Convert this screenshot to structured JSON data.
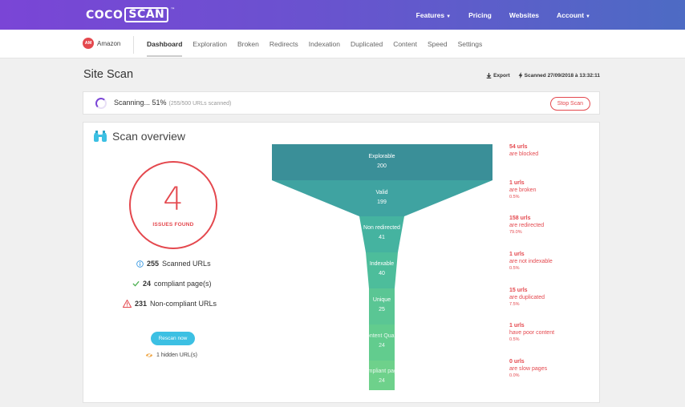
{
  "brand": {
    "logo_left": "COCO",
    "logo_right": "SCAN",
    "logo_mark": "™"
  },
  "topnav": {
    "features": "Features",
    "pricing": "Pricing",
    "websites": "Websites",
    "account": "Account"
  },
  "project": {
    "avatar": "AM",
    "name": "Amazon"
  },
  "tabs": [
    {
      "label": "Dashboard"
    },
    {
      "label": "Exploration"
    },
    {
      "label": "Broken"
    },
    {
      "label": "Redirects"
    },
    {
      "label": "Indexation"
    },
    {
      "label": "Duplicated"
    },
    {
      "label": "Content"
    },
    {
      "label": "Speed"
    },
    {
      "label": "Settings"
    }
  ],
  "page": {
    "title": "Site Scan",
    "export": "Export",
    "scanned": "Scanned 27/09/2018 à 13:32:11"
  },
  "scan": {
    "status": "Scanning... 51%",
    "detail": "(255/500 URLs scanned)",
    "stop": "Stop Scan",
    "progress_percent": 51
  },
  "overview": {
    "title": "Scan overview",
    "issues_count": "4",
    "issues_label": "ISSUES FOUND",
    "scanned_num": "255",
    "scanned_label": "Scanned URLs",
    "compliant_num": "24",
    "compliant_label": "compliant page(s)",
    "noncompliant_num": "231",
    "noncompliant_label": "Non-compliant URLs",
    "rescan": "Rescan now",
    "hidden": "1 hidden URL(s)"
  },
  "funnel": [
    {
      "name": "Explorable",
      "value": "200"
    },
    {
      "name": "Valid",
      "value": "199"
    },
    {
      "name": "Non redirected",
      "value": "41"
    },
    {
      "name": "Indexable",
      "value": "40"
    },
    {
      "name": "Unique",
      "value": "25"
    },
    {
      "name": "Content Quality",
      "value": "24"
    },
    {
      "name": "Compliant pages",
      "value": "24"
    }
  ],
  "notes": [
    {
      "count": "54 urls",
      "text": "are blocked",
      "pct": ""
    },
    {
      "count": "1 urls",
      "text": "are broken",
      "pct": "0.5%"
    },
    {
      "count": "158 urls",
      "text": "are redirected",
      "pct": "79.0%"
    },
    {
      "count": "1 urls",
      "text": "are not indexable",
      "pct": "0.5%"
    },
    {
      "count": "15 urls",
      "text": "are duplicated",
      "pct": "7.5%"
    },
    {
      "count": "1 urls",
      "text": "have poor content",
      "pct": "0.5%"
    },
    {
      "count": "0 urls",
      "text": "are slow pages",
      "pct": "0.0%"
    }
  ],
  "colors": {
    "accent": "#7a45d6",
    "danger": "#e4484e",
    "info": "#3cc0e3",
    "success": "#4caf50"
  }
}
